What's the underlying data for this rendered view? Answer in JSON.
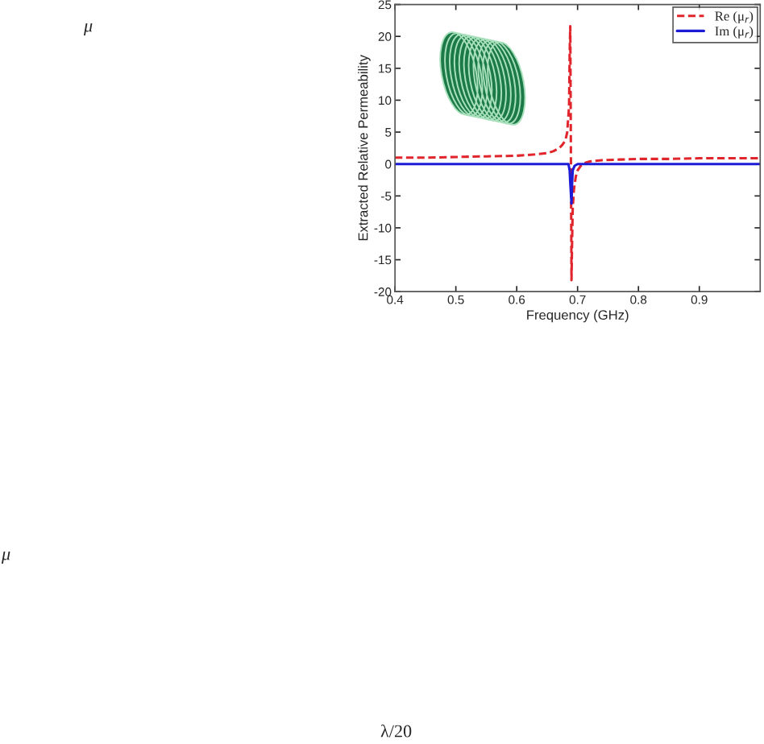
{
  "chart_data": {
    "type": "line",
    "xlabel": "Frequency (GHz)",
    "ylabel": "Extracted Relative Permeability",
    "xlim": [
      0.4,
      1.0
    ],
    "xticks": [
      0.4,
      0.5,
      0.6,
      0.7,
      0.8,
      0.9
    ],
    "ylim": [
      -20,
      25
    ],
    "yticks": [
      -20,
      -15,
      -10,
      -5,
      0,
      5,
      10,
      15,
      20,
      25
    ],
    "legend": "top right",
    "grid": false,
    "series": [
      {
        "name": "Re (μ$_{r}$)",
        "color": "#e0262c",
        "line_style": "dashed",
        "x": [
          0.4,
          0.45,
          0.5,
          0.55,
          0.6,
          0.63,
          0.65,
          0.66,
          0.67,
          0.675,
          0.68,
          0.683,
          0.684,
          0.686,
          0.687,
          0.688,
          0.689,
          0.69,
          0.691,
          0.692,
          0.694,
          0.697,
          0.7,
          0.705,
          0.71,
          0.72,
          0.74,
          0.77,
          0.8,
          0.85,
          0.9,
          0.95,
          1.0
        ],
        "values": [
          1.0,
          1.0,
          1.1,
          1.2,
          1.3,
          1.5,
          1.7,
          2.0,
          2.5,
          3.0,
          3.7,
          5.0,
          6.4,
          9.0,
          17.4,
          21.6,
          2.0,
          -18.2,
          -12.0,
          -7.0,
          -4.0,
          -2.0,
          -1.0,
          -0.3,
          0.1,
          0.4,
          0.6,
          0.7,
          0.8,
          0.8,
          0.9,
          0.9,
          0.9
        ]
      },
      {
        "name": "Im (μ$_{r}$)",
        "color": "#1c1cd6",
        "line_style": "solid",
        "x": [
          0.4,
          0.685,
          0.687,
          0.688,
          0.69,
          0.691,
          0.692,
          0.695,
          0.7,
          1.0
        ],
        "values": [
          0.0,
          0.0,
          -1.0,
          -3.0,
          -6.2,
          -3.0,
          -1.0,
          -0.3,
          0.0,
          0.0
        ]
      }
    ],
    "annotations": [
      "μ",
      "μ",
      "λ/20"
    ]
  }
}
